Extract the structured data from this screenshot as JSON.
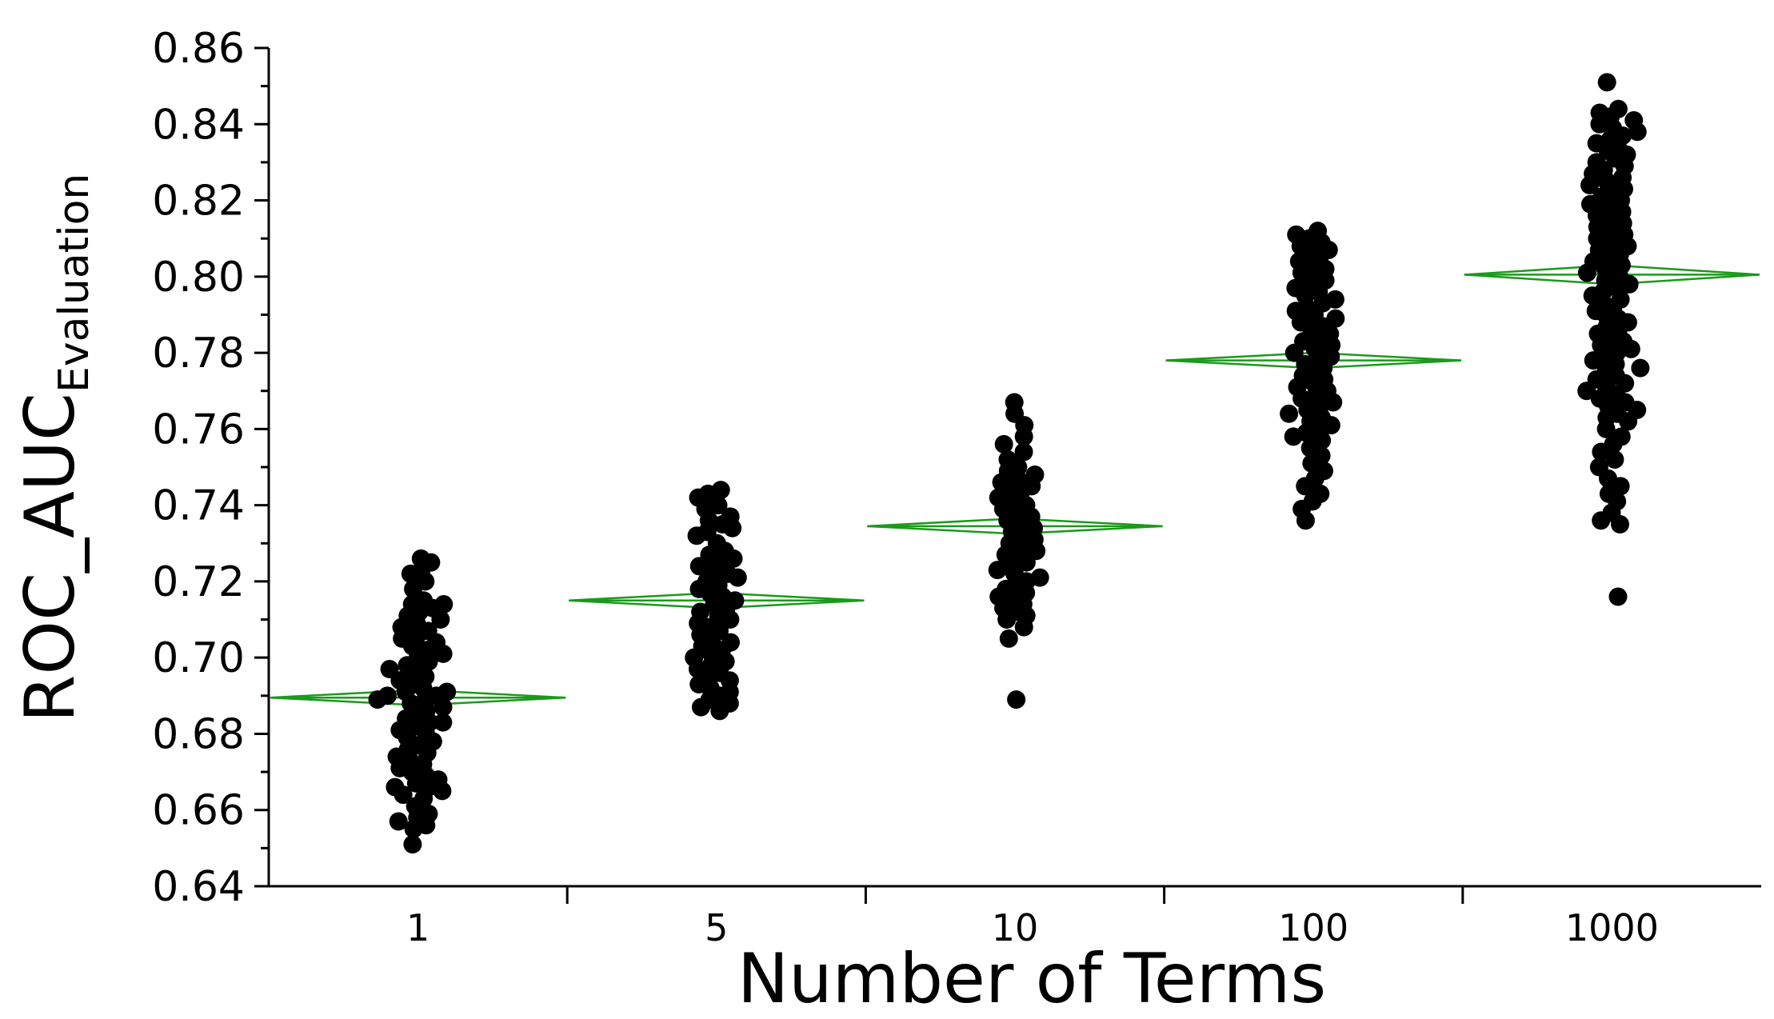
{
  "chart_data": {
    "type": "scatter",
    "xlabel": "Number of Terms",
    "ylabel_main": "ROC_AUC",
    "ylabel_sub": "Evaluation",
    "categories": [
      "1",
      "5",
      "10",
      "100",
      "1000"
    ],
    "ylim": [
      0.64,
      0.86
    ],
    "yticks": [
      "0.64",
      "0.66",
      "0.68",
      "0.70",
      "0.72",
      "0.74",
      "0.76",
      "0.78",
      "0.80",
      "0.82",
      "0.84",
      "0.86"
    ],
    "grid": false,
    "legend": "none",
    "marker_color": "#000000",
    "mean_diamond_color": "#1a9a1a",
    "means": [
      {
        "category": "1",
        "mean": 0.6895,
        "ci_low": 0.6875,
        "ci_high": 0.6915
      },
      {
        "category": "5",
        "mean": 0.715,
        "ci_low": 0.713,
        "ci_high": 0.717
      },
      {
        "category": "10",
        "mean": 0.7345,
        "ci_low": 0.7325,
        "ci_high": 0.7365
      },
      {
        "category": "100",
        "mean": 0.778,
        "ci_low": 0.776,
        "ci_high": 0.78
      },
      {
        "category": "1000",
        "mean": 0.8005,
        "ci_low": 0.798,
        "ci_high": 0.803
      }
    ],
    "series": [
      {
        "category": "1",
        "values": [
          0.726,
          0.725,
          0.723,
          0.722,
          0.72,
          0.718,
          0.715,
          0.714,
          0.714,
          0.713,
          0.712,
          0.711,
          0.71,
          0.709,
          0.708,
          0.707,
          0.706,
          0.705,
          0.704,
          0.703,
          0.702,
          0.701,
          0.7,
          0.699,
          0.698,
          0.697,
          0.696,
          0.695,
          0.694,
          0.693,
          0.692,
          0.691,
          0.691,
          0.69,
          0.69,
          0.689,
          0.689,
          0.688,
          0.687,
          0.686,
          0.685,
          0.684,
          0.683,
          0.683,
          0.682,
          0.681,
          0.68,
          0.679,
          0.678,
          0.677,
          0.676,
          0.675,
          0.674,
          0.673,
          0.672,
          0.671,
          0.67,
          0.669,
          0.668,
          0.667,
          0.666,
          0.666,
          0.665,
          0.664,
          0.663,
          0.661,
          0.659,
          0.658,
          0.657,
          0.656,
          0.655,
          0.651
        ]
      },
      {
        "category": "5",
        "values": [
          0.744,
          0.743,
          0.742,
          0.74,
          0.739,
          0.737,
          0.736,
          0.735,
          0.734,
          0.733,
          0.732,
          0.73,
          0.728,
          0.727,
          0.726,
          0.725,
          0.724,
          0.723,
          0.722,
          0.721,
          0.72,
          0.719,
          0.718,
          0.717,
          0.716,
          0.715,
          0.714,
          0.713,
          0.712,
          0.711,
          0.71,
          0.709,
          0.708,
          0.707,
          0.706,
          0.705,
          0.704,
          0.703,
          0.702,
          0.701,
          0.7,
          0.699,
          0.698,
          0.697,
          0.696,
          0.695,
          0.694,
          0.693,
          0.692,
          0.691,
          0.69,
          0.689,
          0.688,
          0.687,
          0.686
        ]
      },
      {
        "category": "10",
        "values": [
          0.767,
          0.764,
          0.761,
          0.758,
          0.756,
          0.754,
          0.752,
          0.75,
          0.749,
          0.748,
          0.747,
          0.746,
          0.745,
          0.744,
          0.743,
          0.742,
          0.741,
          0.74,
          0.739,
          0.738,
          0.737,
          0.736,
          0.735,
          0.734,
          0.733,
          0.732,
          0.731,
          0.73,
          0.729,
          0.728,
          0.727,
          0.726,
          0.725,
          0.724,
          0.723,
          0.722,
          0.721,
          0.72,
          0.719,
          0.718,
          0.717,
          0.716,
          0.715,
          0.714,
          0.713,
          0.712,
          0.711,
          0.71,
          0.708,
          0.705,
          0.689
        ]
      },
      {
        "category": "100",
        "values": [
          0.812,
          0.811,
          0.81,
          0.809,
          0.808,
          0.807,
          0.806,
          0.805,
          0.804,
          0.803,
          0.802,
          0.801,
          0.8,
          0.799,
          0.798,
          0.797,
          0.796,
          0.795,
          0.794,
          0.793,
          0.792,
          0.791,
          0.79,
          0.789,
          0.788,
          0.787,
          0.786,
          0.785,
          0.784,
          0.783,
          0.782,
          0.781,
          0.78,
          0.779,
          0.778,
          0.777,
          0.776,
          0.775,
          0.774,
          0.773,
          0.772,
          0.771,
          0.77,
          0.769,
          0.768,
          0.767,
          0.766,
          0.765,
          0.764,
          0.763,
          0.762,
          0.761,
          0.76,
          0.759,
          0.758,
          0.757,
          0.755,
          0.753,
          0.751,
          0.749,
          0.747,
          0.745,
          0.743,
          0.741,
          0.739,
          0.736
        ]
      },
      {
        "category": "1000",
        "values": [
          0.851,
          0.844,
          0.843,
          0.842,
          0.841,
          0.84,
          0.839,
          0.838,
          0.837,
          0.836,
          0.835,
          0.834,
          0.833,
          0.832,
          0.831,
          0.83,
          0.829,
          0.828,
          0.827,
          0.826,
          0.825,
          0.824,
          0.823,
          0.822,
          0.821,
          0.82,
          0.819,
          0.818,
          0.817,
          0.816,
          0.815,
          0.814,
          0.813,
          0.812,
          0.811,
          0.81,
          0.809,
          0.808,
          0.807,
          0.806,
          0.805,
          0.804,
          0.803,
          0.802,
          0.801,
          0.8,
          0.799,
          0.798,
          0.797,
          0.796,
          0.795,
          0.794,
          0.793,
          0.792,
          0.791,
          0.79,
          0.789,
          0.788,
          0.787,
          0.786,
          0.785,
          0.784,
          0.783,
          0.782,
          0.781,
          0.78,
          0.779,
          0.778,
          0.777,
          0.776,
          0.775,
          0.774,
          0.773,
          0.772,
          0.771,
          0.77,
          0.769,
          0.768,
          0.767,
          0.766,
          0.765,
          0.764,
          0.763,
          0.762,
          0.76,
          0.758,
          0.756,
          0.754,
          0.752,
          0.75,
          0.747,
          0.745,
          0.743,
          0.741,
          0.738,
          0.736,
          0.735,
          0.716
        ]
      }
    ]
  }
}
